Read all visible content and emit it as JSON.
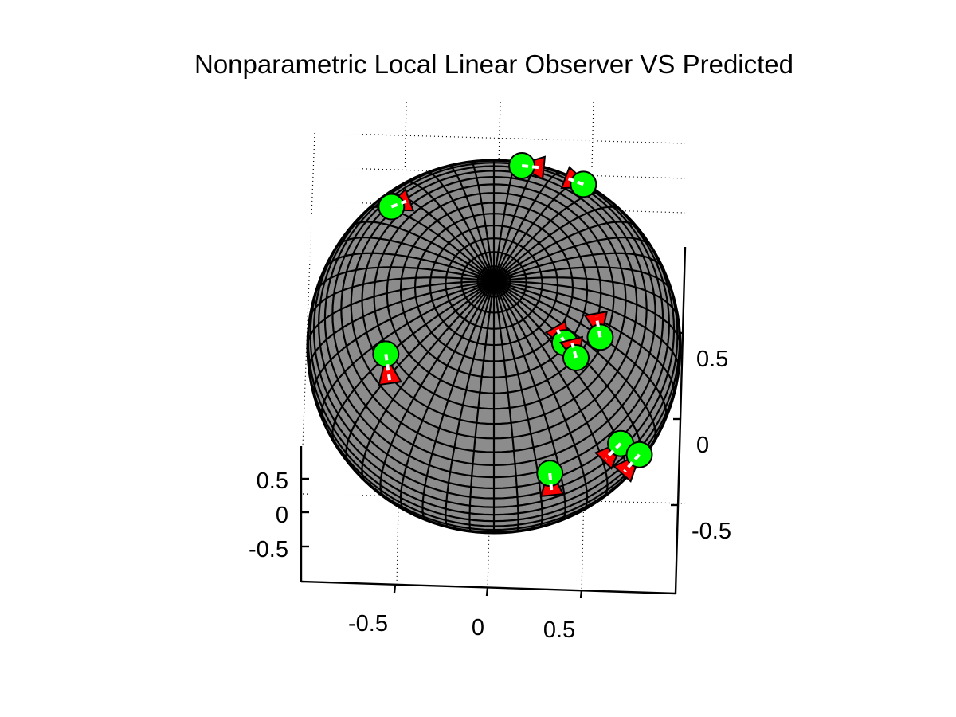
{
  "title": "Nonparametric Local Linear Observer VS Predicted",
  "colors": {
    "sphere_fill": "#8c8c8c",
    "mesh": "#000000",
    "observed": "#00ff00",
    "predicted": "#ff0000",
    "connector": "#ffffff",
    "text": "#000000"
  },
  "chart_data": {
    "type": "scatter",
    "projection": "3d",
    "surface": "unit-sphere",
    "title": "Nonparametric Local Linear Observer VS Predicted",
    "xlabel": "",
    "ylabel": "",
    "zlabel": "",
    "xlim": [
      -1,
      1
    ],
    "ylim": [
      -1,
      1
    ],
    "zlim": [
      -1,
      1
    ],
    "grid": true,
    "x_ticks": [
      "-0.5",
      "0",
      "0.5"
    ],
    "y_ticks": [
      "0.5",
      "0",
      "-0.5"
    ],
    "z_ticks": [
      "0.5",
      "0",
      "-0.5"
    ],
    "series": [
      {
        "marker": "sphere",
        "color": "#00ff00",
        "points": [
          [
            0.15,
            0.97,
            0.18
          ],
          [
            0.48,
            0.87,
            0.1
          ],
          [
            -0.55,
            0.75,
            0.35
          ],
          [
            0.38,
            0.02,
            0.93
          ],
          [
            0.44,
            -0.06,
            0.9
          ],
          [
            0.57,
            0.05,
            0.82
          ],
          [
            -0.58,
            -0.04,
            0.81
          ],
          [
            0.68,
            -0.52,
            0.52
          ],
          [
            0.78,
            -0.58,
            0.24
          ],
          [
            0.3,
            -0.68,
            0.67
          ]
        ]
      },
      {
        "marker": "arrowhead",
        "color": "#ff0000",
        "points": [
          [
            0.25,
            0.96,
            0.12
          ],
          [
            0.4,
            0.9,
            0.18
          ],
          [
            -0.47,
            0.78,
            0.42
          ],
          [
            0.34,
            0.09,
            0.94
          ],
          [
            0.42,
            0.02,
            0.91
          ],
          [
            0.55,
            0.16,
            0.82
          ],
          [
            -0.56,
            -0.18,
            0.81
          ],
          [
            0.6,
            -0.6,
            0.53
          ],
          [
            0.7,
            -0.67,
            0.25
          ],
          [
            0.31,
            -0.78,
            0.54
          ]
        ]
      }
    ]
  }
}
